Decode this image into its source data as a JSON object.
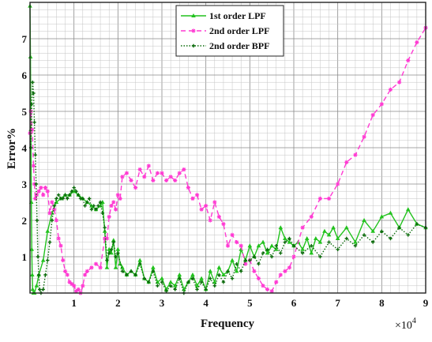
{
  "chart_data": {
    "type": "line",
    "title": "",
    "xlabel": "Frequency",
    "ylabel": "Error%",
    "x_exponent_label": "×10",
    "x_exponent_power": "4",
    "xlim": [
      0,
      9
    ],
    "ylim": [
      0,
      8
    ],
    "x_ticks": [
      "1",
      "2",
      "3",
      "4",
      "5",
      "6",
      "7",
      "8",
      "9"
    ],
    "y_ticks": [
      "1",
      "2",
      "3",
      "4",
      "5",
      "6",
      "7"
    ],
    "grid": true,
    "minor_grid": true,
    "legend_position": "top-center",
    "series": [
      {
        "name": "1st order LPF",
        "color": "#22c21e",
        "style": "solid",
        "marker": "triangle",
        "x": [
          0.0,
          0.01,
          0.02,
          0.03,
          0.04,
          0.05,
          0.06,
          0.08,
          0.1,
          0.15,
          0.2,
          0.3,
          0.4,
          0.5,
          0.6,
          0.7,
          0.8,
          0.9,
          1.0,
          1.1,
          1.2,
          1.3,
          1.4,
          1.5,
          1.6,
          1.65,
          1.7,
          1.75,
          1.8,
          1.85,
          1.9,
          1.95,
          2.0,
          2.05,
          2.1,
          2.2,
          2.3,
          2.4,
          2.5,
          2.6,
          2.7,
          2.8,
          2.9,
          3.0,
          3.1,
          3.2,
          3.3,
          3.4,
          3.5,
          3.6,
          3.7,
          3.8,
          3.9,
          4.0,
          4.1,
          4.2,
          4.3,
          4.4,
          4.5,
          4.6,
          4.7,
          4.8,
          4.9,
          5.0,
          5.1,
          5.2,
          5.3,
          5.4,
          5.5,
          5.6,
          5.7,
          5.8,
          5.9,
          6.0,
          6.1,
          6.2,
          6.3,
          6.4,
          6.5,
          6.6,
          6.7,
          6.8,
          6.9,
          7.0,
          7.2,
          7.4,
          7.6,
          7.8,
          8.0,
          8.2,
          8.4,
          8.6,
          8.8,
          9.0
        ],
        "y": [
          7.9,
          6.5,
          4.5,
          2.5,
          1.2,
          0.5,
          0.1,
          0.0,
          0.0,
          0.2,
          0.5,
          0.9,
          1.7,
          2.2,
          2.5,
          2.6,
          2.7,
          2.7,
          2.8,
          2.7,
          2.6,
          2.5,
          2.4,
          2.3,
          2.4,
          2.5,
          1.7,
          0.7,
          1.2,
          1.1,
          1.45,
          0.7,
          1.2,
          0.8,
          0.7,
          0.5,
          0.6,
          0.5,
          0.9,
          0.4,
          0.3,
          0.7,
          0.3,
          0.4,
          0.1,
          0.3,
          0.2,
          0.5,
          0.1,
          0.3,
          0.5,
          0.2,
          0.4,
          0.1,
          0.6,
          0.3,
          0.7,
          0.5,
          0.6,
          0.9,
          0.6,
          1.2,
          0.9,
          1.3,
          1.0,
          1.3,
          1.4,
          1.1,
          1.3,
          1.2,
          1.8,
          1.5,
          1.4,
          1.3,
          1.4,
          1.2,
          1.5,
          1.1,
          1.5,
          1.4,
          1.7,
          1.6,
          1.8,
          1.5,
          1.8,
          1.4,
          2.0,
          1.7,
          2.1,
          2.2,
          1.8,
          2.3,
          1.9,
          1.8
        ]
      },
      {
        "name": "2nd order LPF",
        "color": "#ff3ad2",
        "style": "dashed",
        "marker": "asterisk",
        "x": [
          0.0,
          0.02,
          0.05,
          0.08,
          0.1,
          0.12,
          0.15,
          0.2,
          0.25,
          0.3,
          0.35,
          0.4,
          0.45,
          0.5,
          0.55,
          0.6,
          0.65,
          0.7,
          0.75,
          0.8,
          0.85,
          0.9,
          0.95,
          1.0,
          1.05,
          1.1,
          1.15,
          1.2,
          1.25,
          1.3,
          1.4,
          1.5,
          1.6,
          1.7,
          1.75,
          1.8,
          1.85,
          1.9,
          1.95,
          2.0,
          2.05,
          2.1,
          2.2,
          2.3,
          2.4,
          2.5,
          2.6,
          2.7,
          2.8,
          2.9,
          3.0,
          3.1,
          3.2,
          3.3,
          3.4,
          3.5,
          3.6,
          3.7,
          3.8,
          3.9,
          4.0,
          4.1,
          4.2,
          4.3,
          4.4,
          4.5,
          4.6,
          4.7,
          4.8,
          4.9,
          5.0,
          5.1,
          5.2,
          5.3,
          5.4,
          5.5,
          5.6,
          5.7,
          5.8,
          5.9,
          6.0,
          6.2,
          6.4,
          6.6,
          6.8,
          7.0,
          7.2,
          7.4,
          7.6,
          7.8,
          8.0,
          8.2,
          8.4,
          8.6,
          8.8,
          9.0
        ],
        "y": [
          4.4,
          5.0,
          4.5,
          3.5,
          3.0,
          2.6,
          2.7,
          2.8,
          2.9,
          2.7,
          2.9,
          2.8,
          2.2,
          2.5,
          2.3,
          2.0,
          1.5,
          1.3,
          0.9,
          0.6,
          0.5,
          0.3,
          0.25,
          0.2,
          0.05,
          0.1,
          0.0,
          0.2,
          0.5,
          0.6,
          0.7,
          0.8,
          0.7,
          1.5,
          1.5,
          2.1,
          2.4,
          2.5,
          2.3,
          2.7,
          2.6,
          3.2,
          3.3,
          3.1,
          2.9,
          3.4,
          3.2,
          3.5,
          3.1,
          3.3,
          3.3,
          3.1,
          3.2,
          3.1,
          3.3,
          3.4,
          2.9,
          2.6,
          2.7,
          2.3,
          2.4,
          2.0,
          2.5,
          2.1,
          1.9,
          1.3,
          1.6,
          1.4,
          1.3,
          0.8,
          0.9,
          0.6,
          0.4,
          0.2,
          0.1,
          0.05,
          0.3,
          0.5,
          0.6,
          0.7,
          1.0,
          1.8,
          2.1,
          2.6,
          2.6,
          3.0,
          3.6,
          3.8,
          4.3,
          4.9,
          5.2,
          5.6,
          5.8,
          6.4,
          6.9,
          7.3
        ]
      },
      {
        "name": "2nd order BPF",
        "color": "#0b6b0b",
        "style": "dotted",
        "marker": "star",
        "x": [
          0.02,
          0.04,
          0.06,
          0.08,
          0.1,
          0.12,
          0.14,
          0.16,
          0.18,
          0.2,
          0.22,
          0.25,
          0.3,
          0.35,
          0.4,
          0.45,
          0.5,
          0.55,
          0.6,
          0.65,
          0.7,
          0.75,
          0.8,
          0.85,
          0.9,
          0.95,
          1.0,
          1.05,
          1.1,
          1.15,
          1.2,
          1.25,
          1.3,
          1.35,
          1.4,
          1.45,
          1.5,
          1.55,
          1.6,
          1.65,
          1.7,
          1.75,
          1.8,
          1.85,
          1.9,
          1.95,
          2.0,
          2.1,
          2.2,
          2.3,
          2.4,
          2.5,
          2.6,
          2.7,
          2.8,
          2.9,
          3.0,
          3.1,
          3.2,
          3.3,
          3.4,
          3.5,
          3.6,
          3.7,
          3.8,
          3.9,
          4.0,
          4.1,
          4.2,
          4.3,
          4.4,
          4.5,
          4.6,
          4.7,
          4.8,
          4.9,
          5.0,
          5.1,
          5.2,
          5.3,
          5.4,
          5.5,
          5.6,
          5.7,
          5.8,
          5.9,
          6.0,
          6.2,
          6.4,
          6.6,
          6.8,
          7.0,
          7.2,
          7.4,
          7.6,
          7.8,
          8.0,
          8.2,
          8.4,
          8.6,
          8.8,
          9.0
        ],
        "y": [
          4.0,
          5.2,
          5.8,
          5.5,
          4.7,
          3.8,
          3.0,
          2.0,
          1.0,
          0.5,
          0.1,
          0.0,
          0.1,
          0.5,
          0.9,
          1.4,
          2.0,
          2.4,
          2.6,
          2.7,
          2.6,
          2.6,
          2.7,
          2.6,
          2.7,
          2.8,
          2.9,
          2.8,
          2.7,
          2.6,
          2.6,
          2.4,
          2.5,
          2.6,
          2.3,
          2.4,
          2.3,
          2.4,
          2.5,
          2.2,
          1.8,
          0.9,
          1.1,
          1.2,
          1.4,
          1.0,
          1.1,
          0.6,
          0.5,
          0.6,
          0.5,
          0.8,
          0.4,
          0.3,
          0.6,
          0.2,
          0.3,
          0.05,
          0.2,
          0.1,
          0.4,
          0.0,
          0.3,
          0.4,
          0.1,
          0.3,
          0.1,
          0.4,
          0.2,
          0.5,
          0.3,
          0.6,
          0.4,
          0.8,
          0.6,
          0.9,
          0.9,
          1.0,
          0.8,
          1.1,
          1.2,
          1.0,
          1.3,
          1.1,
          1.4,
          1.5,
          1.3,
          1.1,
          1.3,
          1.0,
          1.4,
          1.2,
          1.5,
          1.3,
          1.6,
          1.4,
          1.7,
          1.5,
          1.8,
          1.6,
          1.9,
          1.8
        ]
      }
    ]
  }
}
